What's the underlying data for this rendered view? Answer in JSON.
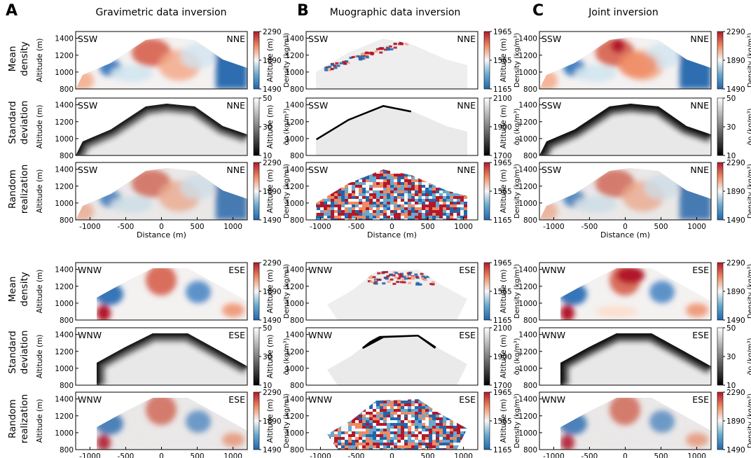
{
  "figure": {
    "panels": [
      {
        "letter": "A",
        "title": "Gravimetric data inversion"
      },
      {
        "letter": "B",
        "title": "Muographic data inversion"
      },
      {
        "letter": "C",
        "title": "Joint inversion"
      }
    ],
    "row_labels": {
      "mean": [
        "Mean",
        "density"
      ],
      "std": [
        "Standard",
        "deviation"
      ],
      "random": [
        "Random",
        "realization"
      ]
    },
    "ylabel": "Altitude (m)",
    "xlabel": "Distance (m)",
    "ns_profile": {
      "left": "SSW",
      "right": "NNE"
    },
    "ew_profile": {
      "left": "WNW",
      "right": "ESE"
    },
    "density_label": "Density (kg/m³)",
    "std_label": "σ̃ρ (kg/m³)",
    "colors": {
      "low": "#2166ac",
      "mid": "#f7f7f7",
      "high": "#b2182b",
      "black": "#000000",
      "white": "#ffffff"
    }
  },
  "chart_data": {
    "type": "heatmap",
    "x_ticks": [
      -1000,
      -500,
      0,
      500,
      1000
    ],
    "xlim": [
      -1200,
      1200
    ],
    "y_ticks": [
      800,
      1000,
      1200,
      1400
    ],
    "ylim": [
      800,
      1480
    ],
    "colorbars": {
      "grav_density": {
        "ticks": [
          "2290",
          "1890",
          "1490"
        ],
        "range": [
          1490,
          2290
        ]
      },
      "muo_density": {
        "ticks": [
          "1965",
          "1565",
          "1165"
        ],
        "range": [
          1165,
          1965
        ]
      },
      "grav_std": {
        "ticks": [
          "50",
          "30",
          "10"
        ],
        "range": [
          10,
          50
        ]
      },
      "muo_std": {
        "ticks": [
          "2100",
          "1900",
          "1700"
        ],
        "range": [
          1700,
          2100
        ]
      }
    },
    "panels": [
      {
        "profile": "NS",
        "method": "gravimetric",
        "row": "mean density",
        "colorbar": "grav_density"
      },
      {
        "profile": "NS",
        "method": "gravimetric",
        "row": "standard deviation",
        "colorbar": "grav_std"
      },
      {
        "profile": "NS",
        "method": "gravimetric",
        "row": "random realization",
        "colorbar": "grav_density"
      },
      {
        "profile": "NS",
        "method": "muographic",
        "row": "mean density",
        "colorbar": "muo_density"
      },
      {
        "profile": "NS",
        "method": "muographic",
        "row": "standard deviation",
        "colorbar": "muo_std"
      },
      {
        "profile": "NS",
        "method": "muographic",
        "row": "random realization",
        "colorbar": "muo_density"
      },
      {
        "profile": "NS",
        "method": "joint",
        "row": "mean density",
        "colorbar": "grav_density"
      },
      {
        "profile": "NS",
        "method": "joint",
        "row": "standard deviation",
        "colorbar": "grav_std"
      },
      {
        "profile": "NS",
        "method": "joint",
        "row": "random realization",
        "colorbar": "grav_density"
      },
      {
        "profile": "EW",
        "method": "gravimetric",
        "row": "mean density",
        "colorbar": "grav_density"
      },
      {
        "profile": "EW",
        "method": "gravimetric",
        "row": "standard deviation",
        "colorbar": "grav_std"
      },
      {
        "profile": "EW",
        "method": "gravimetric",
        "row": "random realization",
        "colorbar": "grav_density"
      },
      {
        "profile": "EW",
        "method": "muographic",
        "row": "mean density",
        "colorbar": "muo_density"
      },
      {
        "profile": "EW",
        "method": "muographic",
        "row": "standard deviation",
        "colorbar": "muo_std"
      },
      {
        "profile": "EW",
        "method": "muographic",
        "row": "random realization",
        "colorbar": "muo_density"
      },
      {
        "profile": "EW",
        "method": "joint",
        "row": "mean density",
        "colorbar": "grav_density"
      },
      {
        "profile": "EW",
        "method": "joint",
        "row": "standard deviation",
        "colorbar": "grav_std"
      },
      {
        "profile": "EW",
        "method": "joint",
        "row": "random realization",
        "colorbar": "grav_density"
      }
    ]
  }
}
